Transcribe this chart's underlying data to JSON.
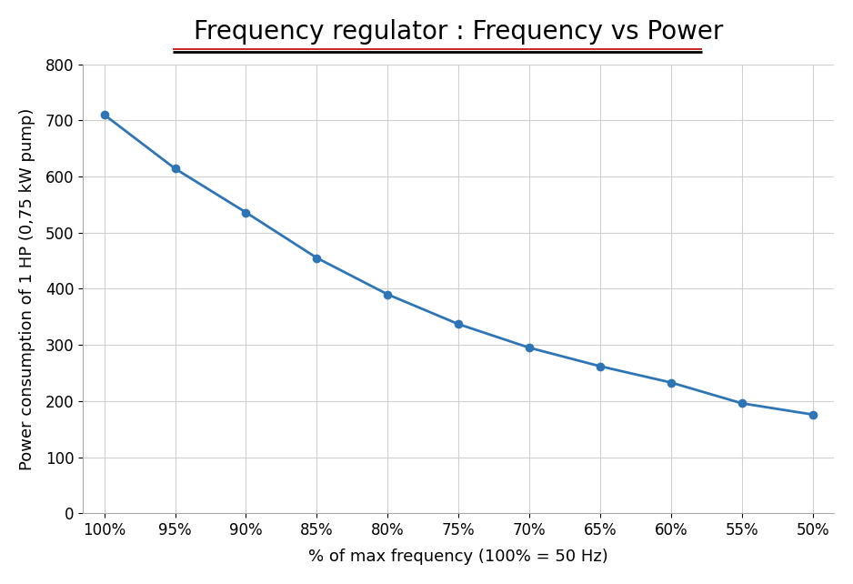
{
  "title": "Frequency regulator : Frequency vs Power",
  "xlabel": "% of max frequency (100% = 50 Hz)",
  "ylabel": "Power consumption of 1 HP (0,75 kW pump)",
  "x_labels": [
    "100%",
    "95%",
    "90%",
    "85%",
    "80%",
    "75%",
    "70%",
    "65%",
    "60%",
    "55%",
    "50%"
  ],
  "x_values": [
    0,
    1,
    2,
    3,
    4,
    5,
    6,
    7,
    8,
    9,
    10
  ],
  "y_values": [
    710,
    614,
    536,
    455,
    390,
    337,
    295,
    262,
    233,
    196,
    176
  ],
  "ylim": [
    0,
    800
  ],
  "yticks": [
    0,
    100,
    200,
    300,
    400,
    500,
    600,
    700,
    800
  ],
  "line_color": "#2e75b6",
  "marker": "o",
  "marker_size": 6,
  "line_width": 2.0,
  "title_fontsize": 20,
  "axis_label_fontsize": 13,
  "tick_fontsize": 12,
  "background_color": "#ffffff",
  "grid_color": "#d0d0d0",
  "title_underline_color": "#c00000",
  "title_black_underline_color": "#000000"
}
